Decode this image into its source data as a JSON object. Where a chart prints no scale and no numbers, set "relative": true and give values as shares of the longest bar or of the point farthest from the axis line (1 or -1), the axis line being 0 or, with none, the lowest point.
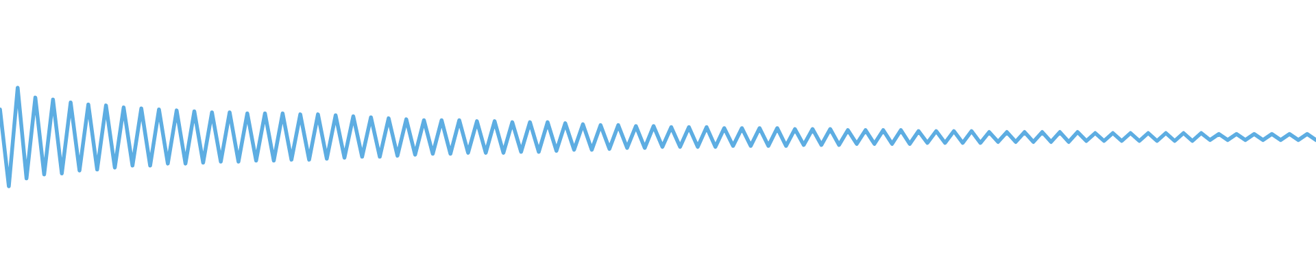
{
  "chart_data": {
    "type": "line",
    "relative": true,
    "color": "#5dade2",
    "categories": [
      null,
      null,
      null,
      null,
      null,
      null,
      null,
      null,
      null,
      null,
      null,
      null,
      null,
      null,
      null,
      null,
      null,
      null,
      null,
      null,
      null,
      null,
      null,
      null,
      null,
      null,
      null,
      null,
      null,
      null,
      null,
      null,
      null,
      null,
      null,
      null,
      null,
      null,
      null,
      null,
      null,
      null,
      null,
      null,
      null,
      null,
      null,
      null,
      null,
      null,
      null,
      null,
      null,
      null,
      null,
      null,
      null,
      null,
      null,
      null,
      null,
      null,
      null,
      null,
      null,
      null,
      null,
      null,
      null,
      null,
      null,
      null,
      null,
      null,
      null,
      null,
      null,
      null,
      null,
      null,
      null,
      null,
      null,
      null,
      null,
      null,
      null,
      null,
      null,
      null,
      null,
      null,
      null,
      null,
      null,
      null,
      null,
      null,
      null,
      null,
      null,
      null,
      null,
      null,
      null,
      null,
      null,
      null,
      null,
      null,
      null,
      null,
      null,
      null,
      null,
      null,
      null,
      null,
      null,
      null,
      null,
      null,
      null,
      null,
      null,
      null,
      null,
      null,
      null,
      null,
      null,
      null,
      null,
      null,
      null,
      null,
      null,
      null,
      null,
      null,
      null,
      null,
      null,
      null,
      null,
      null,
      null,
      null,
      null,
      null
    ],
    "values": [
      0.78,
      0,
      1,
      0.08,
      0.9,
      0.12,
      0.88,
      0.13,
      0.85,
      0.16,
      0.83,
      0.17,
      0.82,
      0.19,
      0.8,
      0.21,
      0.79,
      0.21,
      0.78,
      0.23,
      0.77,
      0.23,
      0.76,
      0.24,
      0.75,
      0.25,
      0.75,
      0.25,
      0.74,
      0.26,
      0.74,
      0.26,
      0.74,
      0.27,
      0.73,
      0.27,
      0.73,
      0.28,
      0.72,
      0.29,
      0.71,
      0.3,
      0.7,
      0.3,
      0.69,
      0.31,
      0.68,
      0.32,
      0.67,
      0.33,
      0.67,
      0.33,
      0.67,
      0.34,
      0.66,
      0.34,
      0.66,
      0.34,
      0.65,
      0.35,
      0.65,
      0.35,
      0.65,
      0.36,
      0.64,
      0.37,
      0.63,
      0.37,
      0.62,
      0.38,
      0.62,
      0.39,
      0.61,
      0.39,
      0.61,
      0.4,
      0.6,
      0.4,
      0.6,
      0.4,
      0.6,
      0.4,
      0.59,
      0.41,
      0.59,
      0.41,
      0.59,
      0.41,
      0.59,
      0.41,
      0.58,
      0.42,
      0.58,
      0.42,
      0.58,
      0.42,
      0.57,
      0.43,
      0.57,
      0.43,
      0.57,
      0.43,
      0.57,
      0.43,
      0.56,
      0.44,
      0.56,
      0.44,
      0.56,
      0.44,
      0.56,
      0.44,
      0.55,
      0.45,
      0.55,
      0.45,
      0.55,
      0.45,
      0.55,
      0.45,
      0.55,
      0.45,
      0.55,
      0.46,
      0.54,
      0.46,
      0.54,
      0.46,
      0.54,
      0.46,
      0.54,
      0.46,
      0.54,
      0.46,
      0.54,
      0.46,
      0.54,
      0.47,
      0.53,
      0.47,
      0.53,
      0.47,
      0.53,
      0.47,
      0.53,
      0.47,
      0.53,
      0.47,
      0.53,
      0.47
    ]
  }
}
